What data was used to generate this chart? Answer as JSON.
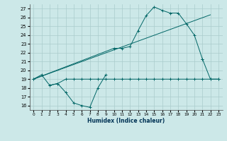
{
  "background_color": "#cce8e8",
  "grid_color": "#aacccc",
  "line_color": "#006666",
  "xlim": [
    -0.5,
    23.5
  ],
  "ylim": [
    15.5,
    27.5
  ],
  "xticks": [
    0,
    1,
    2,
    3,
    4,
    5,
    6,
    7,
    8,
    9,
    10,
    11,
    12,
    13,
    14,
    15,
    16,
    17,
    18,
    19,
    20,
    21,
    22,
    23
  ],
  "yticks": [
    16,
    17,
    18,
    19,
    20,
    21,
    22,
    23,
    24,
    25,
    26,
    27
  ],
  "xlabel": "Humidex (Indice chaleur)",
  "series": [
    {
      "x": [
        0,
        1,
        2,
        3,
        4,
        5,
        6,
        7,
        8,
        9
      ],
      "y": [
        19.0,
        19.5,
        18.3,
        18.5,
        17.5,
        16.3,
        16.0,
        15.8,
        18.0,
        19.5
      ]
    },
    {
      "x": [
        2,
        3,
        4,
        5,
        6,
        7,
        8,
        9,
        10,
        11,
        12,
        13,
        14,
        15,
        16,
        17,
        18,
        19,
        20,
        21,
        22,
        23
      ],
      "y": [
        18.3,
        18.5,
        19.0,
        19.0,
        19.0,
        19.0,
        19.0,
        19.0,
        19.0,
        19.0,
        19.0,
        19.0,
        19.0,
        19.0,
        19.0,
        19.0,
        19.0,
        19.0,
        19.0,
        19.0,
        19.0,
        19.0
      ]
    },
    {
      "x": [
        0,
        10,
        11,
        12,
        13,
        14,
        15,
        16,
        17,
        18,
        19,
        20,
        21
      ],
      "y": [
        19.0,
        22.5,
        22.5,
        22.7,
        24.5,
        26.2,
        27.2,
        26.8,
        26.5,
        26.5,
        25.3,
        24.0,
        21.3
      ]
    },
    {
      "x": [
        21,
        22,
        23
      ],
      "y": [
        21.3,
        19.0,
        19.0
      ]
    },
    {
      "x": [
        0,
        22
      ],
      "y": [
        19.0,
        26.3
      ]
    }
  ]
}
